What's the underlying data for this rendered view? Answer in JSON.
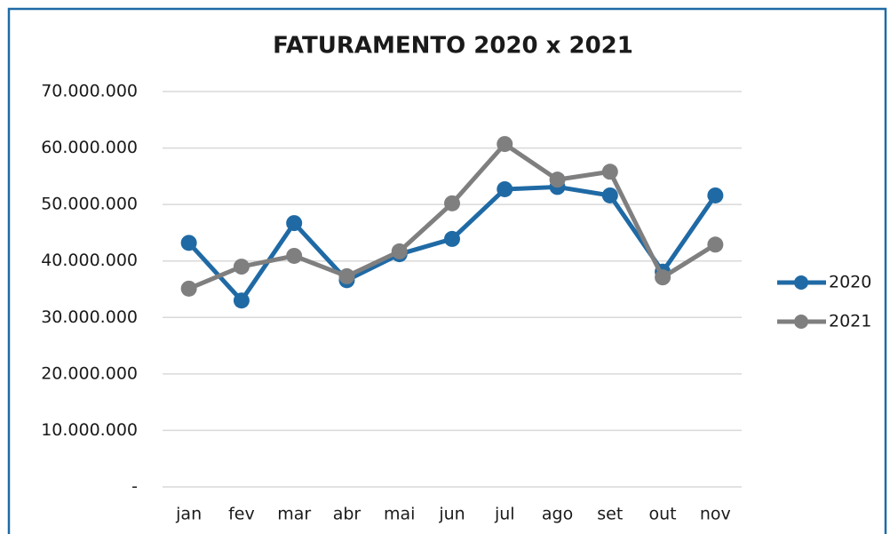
{
  "chart_data": {
    "type": "line",
    "title": "FATURAMENTO 2020 x 2021",
    "categories": [
      "jan",
      "fev",
      "mar",
      "abr",
      "mai",
      "jun",
      "jul",
      "ago",
      "set",
      "out",
      "nov"
    ],
    "series": [
      {
        "name": "2020",
        "color": "#1f6aa5",
        "values": [
          43200000,
          33000000,
          46700000,
          36600000,
          41200000,
          43900000,
          52700000,
          53100000,
          51600000,
          38100000,
          51600000
        ]
      },
      {
        "name": "2021",
        "color": "#7f7f7f",
        "values": [
          35100000,
          39000000,
          40900000,
          37300000,
          41700000,
          50200000,
          60700000,
          54400000,
          55800000,
          37100000,
          42900000
        ]
      }
    ],
    "ylim": [
      0,
      70000000
    ],
    "yticks": [
      {
        "value": 0,
        "label": "-"
      },
      {
        "value": 10000000,
        "label": "10.000.000"
      },
      {
        "value": 20000000,
        "label": "20.000.000"
      },
      {
        "value": 30000000,
        "label": "30.000.000"
      },
      {
        "value": 40000000,
        "label": "40.000.000"
      },
      {
        "value": 50000000,
        "label": "50.000.000"
      },
      {
        "value": 60000000,
        "label": "60.000.000"
      },
      {
        "value": 70000000,
        "label": "70.000.000"
      }
    ],
    "grid": true,
    "legend": "right"
  }
}
